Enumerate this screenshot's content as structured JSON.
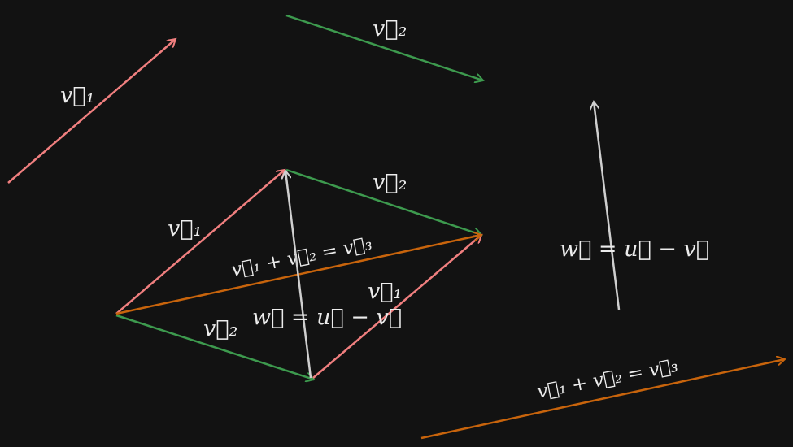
{
  "colors": {
    "background": "#121212",
    "v1": "#f07f7f",
    "v2": "#3d9a4e",
    "sum": "#c8640c",
    "w": "#cfcfcf",
    "text": "#ececec"
  },
  "labels": {
    "v1": "v⃗₁",
    "v2": "v⃗₂",
    "sum": "v⃗₁ + v⃗₂ = v⃗₃",
    "w": "w⃗ = u⃗ − v⃗"
  }
}
